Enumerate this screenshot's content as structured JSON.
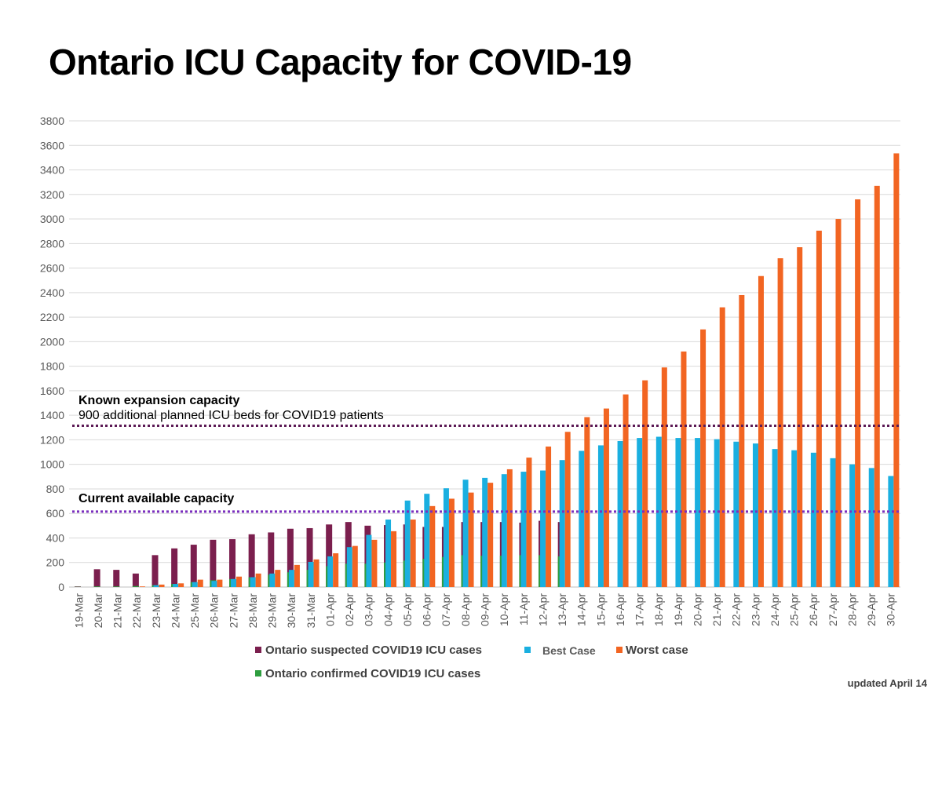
{
  "page": {
    "title": "Ontario ICU Capacity for COVID-19",
    "updated": "updated April 14"
  },
  "colors": {
    "suspected": "#7B1F4E",
    "confirmed": "#2E9E3F",
    "best": "#1AAFE0",
    "worst": "#F26522",
    "expansion_line": "#5C1A55",
    "current_line": "#7B2FBE"
  },
  "chart_data": {
    "type": "bar",
    "title": "Ontario ICU Capacity for COVID-19",
    "xlabel": "",
    "ylabel": "",
    "ylim": [
      0,
      3800
    ],
    "yticks": [
      0,
      200,
      400,
      600,
      800,
      1000,
      1200,
      1400,
      1600,
      1800,
      2000,
      2200,
      2400,
      2600,
      2800,
      3000,
      3200,
      3400,
      3600,
      3800
    ],
    "grid": true,
    "legend": "bottom",
    "categories": [
      "19-Mar",
      "20-Mar",
      "21-Mar",
      "22-Mar",
      "23-Mar",
      "24-Mar",
      "25-Mar",
      "26-Mar",
      "27-Mar",
      "28-Mar",
      "29-Mar",
      "30-Mar",
      "31-Mar",
      "01-Apr",
      "02-Apr",
      "03-Apr",
      "04-Apr",
      "05-Apr",
      "06-Apr",
      "07-Apr",
      "08-Apr",
      "09-Apr",
      "10-Apr",
      "11-Apr",
      "12-Apr",
      "13-Apr",
      "14-Apr",
      "15-Apr",
      "16-Apr",
      "17-Apr",
      "18-Apr",
      "19-Apr",
      "20-Apr",
      "21-Apr",
      "22-Apr",
      "23-Apr",
      "24-Apr",
      "25-Apr",
      "26-Apr",
      "27-Apr",
      "28-Apr",
      "29-Apr",
      "30-Apr"
    ],
    "series": [
      {
        "name": "Ontario suspected COVID19 ICU cases",
        "key": "suspected",
        "values": [
          5,
          145,
          140,
          110,
          260,
          315,
          345,
          385,
          390,
          430,
          445,
          475,
          480,
          510,
          530,
          500,
          505,
          510,
          490,
          490,
          530,
          530,
          530,
          525,
          540,
          530,
          null,
          null,
          null,
          null,
          null,
          null,
          null,
          null,
          null,
          null,
          null,
          null,
          null,
          null,
          null,
          null,
          null
        ]
      },
      {
        "name": "Ontario confirmed COVID19 ICU cases",
        "key": "confirmed",
        "values": [
          2,
          5,
          5,
          8,
          15,
          25,
          40,
          55,
          65,
          80,
          100,
          120,
          140,
          170,
          190,
          190,
          200,
          215,
          230,
          245,
          260,
          255,
          255,
          260,
          260,
          250,
          null,
          null,
          null,
          null,
          null,
          null,
          null,
          null,
          null,
          null,
          null,
          null,
          null,
          null,
          null,
          null,
          null
        ]
      },
      {
        "name": "Best Case",
        "key": "best",
        "values": [
          null,
          null,
          null,
          null,
          15,
          25,
          40,
          50,
          65,
          80,
          110,
          140,
          205,
          250,
          325,
          425,
          550,
          705,
          760,
          805,
          875,
          890,
          920,
          940,
          950,
          1035,
          1110,
          1155,
          1190,
          1215,
          1225,
          1215,
          1215,
          1205,
          1185,
          1170,
          1125,
          1115,
          1095,
          1050,
          1000,
          970,
          905
        ]
      },
      {
        "name": "Worst case",
        "key": "worst",
        "values": [
          null,
          null,
          null,
          5,
          20,
          30,
          60,
          60,
          85,
          110,
          140,
          180,
          225,
          275,
          335,
          385,
          455,
          550,
          660,
          720,
          770,
          850,
          960,
          1055,
          1145,
          1265,
          1385,
          1455,
          1570,
          1685,
          1790,
          1920,
          2100,
          2280,
          2380,
          2535,
          2680,
          2770,
          2905,
          3000,
          3160,
          3270,
          3535
        ]
      }
    ],
    "annotations": [
      {
        "key": "expansion",
        "value": 1315,
        "title": "Known expansion capacity",
        "subtitle": "900 additional planned ICU beds for COVID19 patients"
      },
      {
        "key": "current",
        "value": 615,
        "title": "Current available capacity"
      }
    ]
  }
}
